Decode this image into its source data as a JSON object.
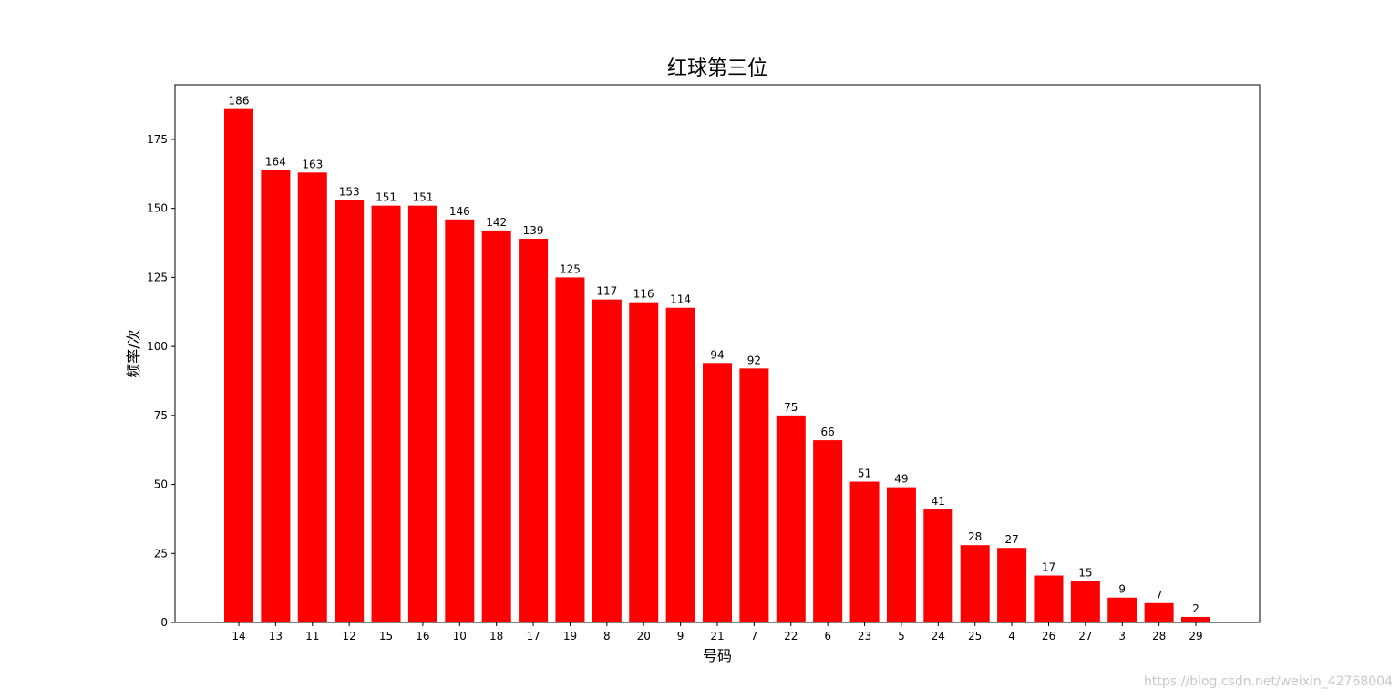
{
  "chart_data": {
    "type": "bar",
    "title": "红球第三位",
    "x_label": "号码",
    "y_label": "频率/次",
    "categories": [
      "14",
      "13",
      "11",
      "12",
      "15",
      "16",
      "10",
      "18",
      "17",
      "19",
      "8",
      "20",
      "9",
      "21",
      "7",
      "22",
      "6",
      "23",
      "5",
      "24",
      "25",
      "4",
      "26",
      "27",
      "3",
      "28",
      "29"
    ],
    "values": [
      186,
      164,
      163,
      153,
      151,
      151,
      146,
      142,
      139,
      125,
      117,
      116,
      114,
      94,
      92,
      75,
      66,
      51,
      49,
      41,
      28,
      27,
      17,
      15,
      9,
      7,
      2
    ],
    "color": "#ff0000",
    "ylim": [
      0,
      194.8
    ],
    "yticks": [
      0,
      25,
      50,
      75,
      100,
      125,
      150,
      175
    ],
    "grid": false,
    "watermark": "https://blog.csdn.net/weixin_42768004"
  }
}
